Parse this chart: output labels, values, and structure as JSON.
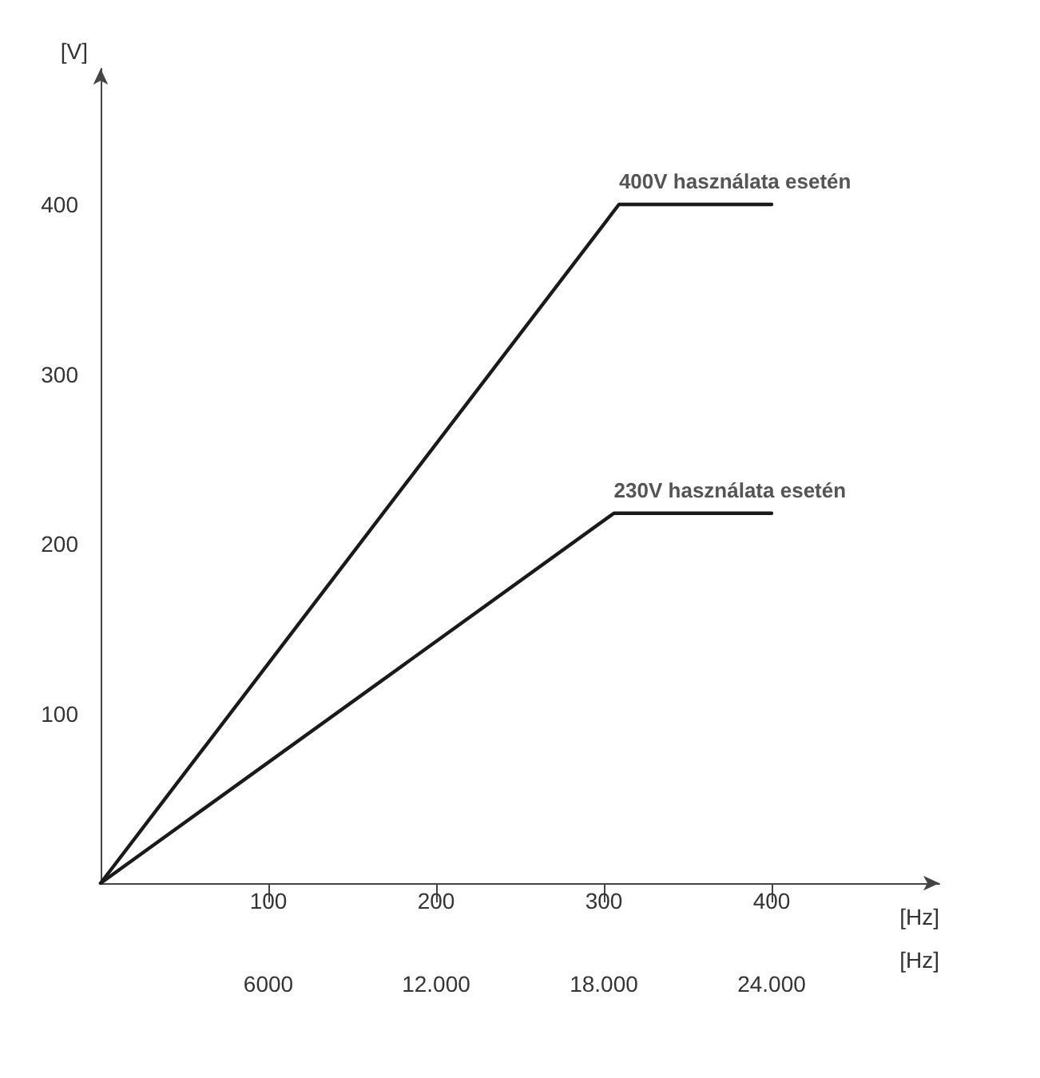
{
  "chart_data": {
    "type": "line",
    "xlabel": "[Hz]",
    "ylabel": "[V]",
    "x2label": "[Hz]",
    "xlim": [
      0,
      500
    ],
    "xticks": [
      100,
      200,
      300,
      400
    ],
    "x2lim": [
      0,
      30000
    ],
    "x2ticks": [
      6000,
      {
        "value": 12000,
        "label": "12.000"
      },
      {
        "value": 18000,
        "label": "18.000"
      },
      {
        "value": 24000,
        "label": "24.000"
      }
    ],
    "ylim": [
      0,
      480
    ],
    "yticks": [
      100,
      200,
      300,
      400
    ],
    "series": [
      {
        "name": "400V használata esetén",
        "color": "#1a1a1a",
        "x": [
          0,
          309,
          400
        ],
        "values": [
          0,
          400,
          400
        ]
      },
      {
        "name": "230V használata esetén",
        "color": "#1a1a1a",
        "x": [
          0,
          306,
          400
        ],
        "values": [
          0,
          218,
          218
        ]
      }
    ],
    "grid": false,
    "legend": false,
    "marker": "none",
    "line_style": "solid"
  }
}
